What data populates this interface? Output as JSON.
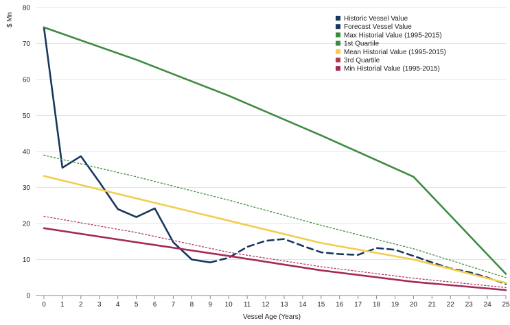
{
  "chart_data": {
    "type": "line",
    "ylabel": "$ Mn",
    "xlabel": "Vessel Age (Years)",
    "xlim": [
      0,
      25
    ],
    "ylim": [
      0,
      80
    ],
    "x_ticks": [
      "0",
      "1",
      "2",
      "3",
      "4",
      "5",
      "6",
      "7",
      "8",
      "9",
      "10",
      "11",
      "12",
      "13",
      "14",
      "15",
      "16",
      "17",
      "18",
      "19",
      "20",
      "21",
      "22",
      "23",
      "24",
      "25"
    ],
    "y_ticks": [
      "0",
      "10",
      "20",
      "30",
      "40",
      "50",
      "60",
      "70",
      "80"
    ],
    "grid": "horizontal",
    "legend_position": "top-right",
    "series": [
      {
        "name": "Historic Vessel Value",
        "color": "#17375e",
        "style": "solid",
        "points": [
          [
            0,
            74.5
          ],
          [
            1,
            35.5
          ],
          [
            2,
            38.7
          ],
          [
            3,
            31.5
          ],
          [
            4,
            24
          ],
          [
            5,
            21.8
          ],
          [
            6,
            24.2
          ],
          [
            7,
            14.8
          ],
          [
            8,
            10
          ],
          [
            9,
            9.2
          ]
        ]
      },
      {
        "name": "Forecast Vessel Value",
        "color": "#17375e",
        "style": "dashed",
        "points": [
          [
            9,
            9.2
          ],
          [
            10,
            10.5
          ],
          [
            11,
            13.5
          ],
          [
            12,
            15.2
          ],
          [
            13,
            15.7
          ],
          [
            14,
            13.8
          ],
          [
            15,
            12
          ],
          [
            16,
            11.5
          ],
          [
            17,
            11.3
          ],
          [
            18,
            13.2
          ],
          [
            19,
            12.7
          ],
          [
            20,
            11
          ],
          [
            21,
            9.2
          ],
          [
            22,
            7.5
          ],
          [
            23,
            6.5
          ],
          [
            24,
            5
          ],
          [
            25,
            3.2
          ]
        ]
      },
      {
        "name": "Max Historial Value (1995-2015)",
        "color": "#3d8b40",
        "style": "solid",
        "points": [
          [
            0,
            74.5
          ],
          [
            5,
            65.5
          ],
          [
            10,
            55.5
          ],
          [
            15,
            44.5
          ],
          [
            20,
            33
          ],
          [
            25,
            6
          ]
        ]
      },
      {
        "name": "1st Quartile",
        "color": "#3d8b40",
        "style": "dotted",
        "points": [
          [
            0,
            39
          ],
          [
            5,
            33
          ],
          [
            10,
            26.5
          ],
          [
            15,
            19.5
          ],
          [
            20,
            13
          ],
          [
            25,
            5
          ]
        ]
      },
      {
        "name": "Mean Historial Value (1995-2015)",
        "color": "#f2cd4e",
        "style": "solid",
        "points": [
          [
            0,
            33.2
          ],
          [
            5,
            27
          ],
          [
            10,
            20.8
          ],
          [
            15,
            14.6
          ],
          [
            20,
            10
          ],
          [
            25,
            3.5
          ]
        ]
      },
      {
        "name": "3rd Quartile",
        "color": "#b03a5b",
        "style": "dotted",
        "points": [
          [
            0,
            22
          ],
          [
            5,
            17.5
          ],
          [
            10,
            12
          ],
          [
            15,
            8
          ],
          [
            20,
            4.8
          ],
          [
            25,
            2.2
          ]
        ]
      },
      {
        "name": "Min Historial Value (1995-2015)",
        "color": "#a52a56",
        "style": "solid",
        "points": [
          [
            0,
            18.7
          ],
          [
            5,
            14.8
          ],
          [
            10,
            11
          ],
          [
            15,
            7
          ],
          [
            20,
            3.8
          ],
          [
            25,
            1.5
          ]
        ]
      }
    ]
  }
}
